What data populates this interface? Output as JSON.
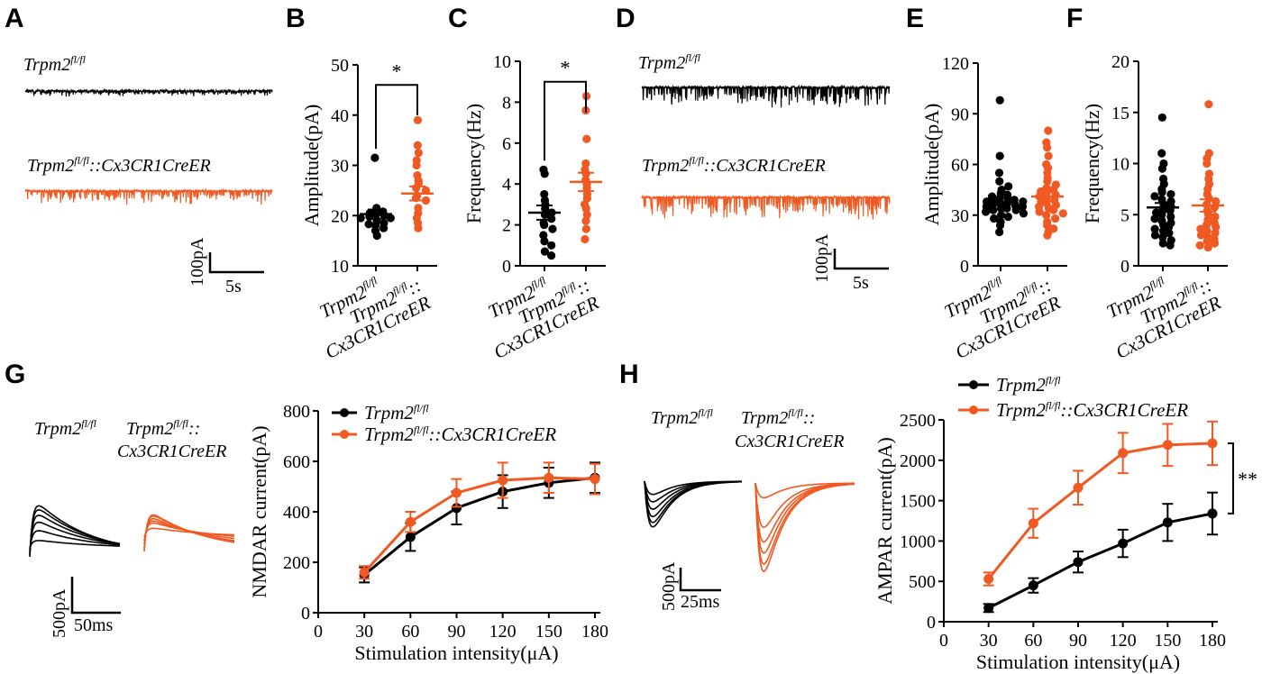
{
  "colors": {
    "control": "#000000",
    "ko": "#f05a22"
  },
  "genotypes": {
    "ctrl": {
      "base": "Trpm2",
      "sup": "fl/fl"
    },
    "ko_one_line": {
      "base": "Trpm2",
      "sup": "fl/fl",
      "tail": "::Cx3CR1CreER"
    },
    "ko_two_lines": {
      "line1_base": "Trpm2",
      "line1_sup": "fl/fl",
      "line1_tail": "::",
      "line2": "Cx3CR1CreER"
    }
  },
  "panels": {
    "A": {
      "letter": "A",
      "scale_current": "100pA",
      "scale_time": "5s"
    },
    "D": {
      "letter": "D",
      "scale_current": "100pA",
      "scale_time": "5s"
    },
    "G": {
      "letter": "G",
      "scale_current": "500pA",
      "scale_time": "50ms"
    },
    "H": {
      "letter": "H",
      "scale_current": "500pA",
      "scale_time": "25ms"
    }
  },
  "chart_data": [
    {
      "id": "B",
      "letter": "B",
      "type": "scatter",
      "categories": [
        "Trpm2 fl/fl",
        "Trpm2 fl/fl::Cx3CR1CreER"
      ],
      "ylabel": "Amplitude(pA)",
      "ylim": [
        10,
        50
      ],
      "yticks": [
        10,
        20,
        30,
        40,
        50
      ],
      "significance": "*",
      "series": [
        {
          "points": [
            31.5,
            21.5,
            21,
            20.8,
            20.5,
            20.3,
            20,
            19.8,
            19.5,
            19.5,
            19,
            18.5,
            18.3,
            18,
            17.5,
            17,
            16
          ],
          "mean": 20.3,
          "sem": 0.9
        },
        {
          "points": [
            39,
            34,
            32.5,
            31,
            30,
            28,
            27,
            26.5,
            25.5,
            25,
            24,
            23.5,
            23,
            21.5,
            20.5,
            19.5,
            18.5,
            17.5
          ],
          "mean": 24.4,
          "sem": 1.4
        }
      ]
    },
    {
      "id": "C",
      "letter": "C",
      "type": "scatter",
      "categories": [
        "Trpm2 fl/fl",
        "Trpm2 fl/fl::Cx3CR1CreER"
      ],
      "ylabel": "Frequency(Hz)",
      "ylim": [
        0,
        10
      ],
      "yticks": [
        0,
        2,
        4,
        6,
        8,
        10
      ],
      "significance": "*",
      "series": [
        {
          "points": [
            4.7,
            4.5,
            3.5,
            3.2,
            3.0,
            2.8,
            2.6,
            2.5,
            2.3,
            2.1,
            2.0,
            1.8,
            1.5,
            1.2,
            1.0,
            0.7,
            0.5
          ],
          "mean": 2.6,
          "sem": 0.35
        },
        {
          "points": [
            8.3,
            7.6,
            6.2,
            5.0,
            4.7,
            4.5,
            4.2,
            4.0,
            3.8,
            3.5,
            3.3,
            3.0,
            2.8,
            2.5,
            2.2,
            1.8,
            1.3
          ],
          "mean": 4.1,
          "sem": 0.45
        }
      ]
    },
    {
      "id": "E",
      "letter": "E",
      "type": "scatter",
      "categories": [
        "Trpm2 fl/fl",
        "Trpm2 fl/fl::Cx3CR1CreER"
      ],
      "ylabel": "Amplitude(pA)",
      "ylim": [
        0,
        120
      ],
      "yticks": [
        0,
        30,
        60,
        90,
        120
      ],
      "significance": "",
      "series": [
        {
          "points": [
            98,
            65,
            55,
            50,
            47,
            45,
            43,
            42,
            41,
            40,
            40,
            39,
            39,
            38,
            38,
            37,
            37,
            36,
            36,
            35,
            35,
            34,
            34,
            33,
            33,
            32,
            31,
            30,
            29,
            28,
            26,
            24,
            20
          ],
          "mean": 38,
          "sem": 2.2
        },
        {
          "points": [
            80,
            73,
            70,
            65,
            60,
            58,
            55,
            52,
            50,
            48,
            46,
            45,
            44,
            43,
            42,
            41,
            40,
            39,
            38,
            37,
            36,
            35,
            34,
            33,
            32,
            31,
            30,
            28,
            26,
            24,
            22,
            20,
            18
          ],
          "mean": 41,
          "sem": 2.6
        }
      ]
    },
    {
      "id": "F",
      "letter": "F",
      "type": "scatter",
      "categories": [
        "Trpm2 fl/fl",
        "Trpm2 fl/fl::Cx3CR1CreER"
      ],
      "ylabel": "Frequency(Hz)",
      "ylim": [
        0,
        20
      ],
      "yticks": [
        0,
        5,
        10,
        15,
        20
      ],
      "significance": "",
      "series": [
        {
          "points": [
            14.5,
            11,
            10,
            9.5,
            8.5,
            8,
            7.5,
            7.2,
            7,
            6.8,
            6.5,
            6.3,
            6,
            5.8,
            5.6,
            5.4,
            5.2,
            5,
            4.8,
            4.6,
            4.4,
            4.2,
            4,
            3.8,
            3.6,
            3.4,
            3.2,
            3,
            2.8,
            2.5,
            2.2,
            2
          ],
          "mean": 5.7,
          "sem": 0.45
        },
        {
          "points": [
            15.8,
            11,
            10.5,
            10,
            9,
            8.5,
            8,
            7.5,
            7,
            6.6,
            6.3,
            6,
            5.7,
            5.4,
            5.1,
            4.8,
            4.5,
            4.2,
            4,
            3.8,
            3.6,
            3.4,
            3.2,
            3,
            2.8,
            2.6,
            2.4,
            2.2,
            2,
            1.8
          ],
          "mean": 5.9,
          "sem": 0.6
        }
      ]
    },
    {
      "id": "Gplot",
      "type": "line",
      "xlabel": "Stimulation intensity(μA)",
      "ylabel": "NMDAR current(pA)",
      "x": [
        30,
        60,
        90,
        120,
        150,
        180
      ],
      "xlim": [
        0,
        180
      ],
      "ylim": [
        0,
        800
      ],
      "xticks": [
        0,
        30,
        60,
        90,
        120,
        150,
        180
      ],
      "yticks": [
        0,
        200,
        400,
        600,
        800
      ],
      "legend": "top-left",
      "series": [
        {
          "values": [
            150,
            300,
            415,
            480,
            515,
            535
          ],
          "err": [
            30,
            55,
            65,
            65,
            60,
            60
          ]
        },
        {
          "values": [
            160,
            360,
            475,
            525,
            535,
            530
          ],
          "err": [
            25,
            40,
            55,
            70,
            60,
            60
          ]
        }
      ]
    },
    {
      "id": "Hplot",
      "type": "line",
      "xlabel": "Stimulation intensity(μA)",
      "ylabel": "AMPAR current(pA)",
      "x": [
        30,
        60,
        90,
        120,
        150,
        180
      ],
      "xlim": [
        0,
        180
      ],
      "ylim": [
        0,
        2500
      ],
      "xticks": [
        0,
        30,
        60,
        90,
        120,
        150,
        180
      ],
      "yticks": [
        0,
        500,
        1000,
        1500,
        2000,
        2500
      ],
      "legend": "top-left",
      "significance": "**",
      "series": [
        {
          "values": [
            170,
            450,
            740,
            970,
            1230,
            1340
          ],
          "err": [
            50,
            90,
            130,
            170,
            230,
            260
          ]
        },
        {
          "values": [
            530,
            1220,
            1660,
            2090,
            2190,
            2210
          ],
          "err": [
            80,
            180,
            210,
            250,
            260,
            270
          ]
        }
      ]
    }
  ]
}
